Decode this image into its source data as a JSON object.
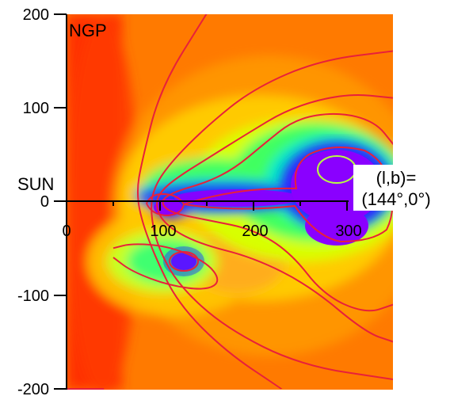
{
  "chart_data": {
    "type": "heatmap",
    "title": "",
    "xlabel": "",
    "ylabel": "",
    "xlim": [
      0,
      350
    ],
    "ylim": [
      -200,
      200
    ],
    "y_ticks": [
      "200",
      "100",
      "0",
      "-100",
      "-200"
    ],
    "x_ticks": [
      "0",
      "100",
      "200",
      "300"
    ],
    "colormap": [
      "#ff2a00",
      "#ff6a00",
      "#ffaa00",
      "#ffee00",
      "#b8ff00",
      "#2aff55",
      "#00e8c8",
      "#2030ff",
      "#8a00ff"
    ],
    "contour_color": "#e8203a",
    "inner_contour_color": "#b8ff40",
    "annotations": {
      "ngp": "NGP",
      "sun": "SUN",
      "lb_line1": "(l,b)=",
      "lb_line2": "(144°,0°)"
    },
    "contours": [
      {
        "label": "outer",
        "points": [
          [
            0,
            -200
          ],
          [
            40,
            -200
          ]
        ]
      },
      {
        "label": "c1",
        "points": [
          [
            150,
            200
          ],
          [
            100,
            120
          ],
          [
            80,
            40
          ],
          [
            75,
            10
          ],
          [
            80,
            -20
          ],
          [
            95,
            -60
          ],
          [
            120,
            -110
          ],
          [
            170,
            -160
          ],
          [
            230,
            -200
          ]
        ]
      },
      {
        "label": "c2",
        "points": [
          [
            350,
            160
          ],
          [
            270,
            150
          ],
          [
            200,
            120
          ],
          [
            150,
            80
          ],
          [
            110,
            40
          ],
          [
            92,
            12
          ],
          [
            90,
            -15
          ],
          [
            98,
            -50
          ],
          [
            120,
            -90
          ],
          [
            170,
            -135
          ],
          [
            250,
            -175
          ],
          [
            350,
            -190
          ]
        ]
      },
      {
        "label": "c3",
        "points": [
          [
            350,
            110
          ],
          [
            300,
            115
          ],
          [
            240,
            100
          ],
          [
            190,
            70
          ],
          [
            150,
            45
          ],
          [
            118,
            25
          ],
          [
            100,
            10
          ],
          [
            95,
            -5
          ],
          [
            105,
            -25
          ],
          [
            140,
            -45
          ],
          [
            200,
            -60
          ],
          [
            260,
            -90
          ],
          [
            320,
            -140
          ],
          [
            350,
            -150
          ]
        ]
      },
      {
        "label": "c4",
        "points": [
          [
            350,
            60
          ],
          [
            330,
            85
          ],
          [
            290,
            95
          ],
          [
            245,
            88
          ],
          [
            210,
            60
          ],
          [
            180,
            35
          ],
          [
            150,
            20
          ],
          [
            115,
            10
          ],
          [
            100,
            0
          ],
          [
            110,
            -12
          ],
          [
            150,
            -20
          ],
          [
            200,
            -30
          ],
          [
            240,
            -55
          ],
          [
            275,
            -100
          ],
          [
            320,
            -120
          ],
          [
            350,
            -110
          ]
        ]
      },
      {
        "label": "left-lobe",
        "points": [
          [
            50,
            -50
          ],
          [
            70,
            -45
          ],
          [
            110,
            -48
          ],
          [
            150,
            -65
          ],
          [
            165,
            -85
          ],
          [
            150,
            -95
          ],
          [
            110,
            -90
          ],
          [
            70,
            -75
          ],
          [
            50,
            -60
          ]
        ]
      }
    ]
  }
}
